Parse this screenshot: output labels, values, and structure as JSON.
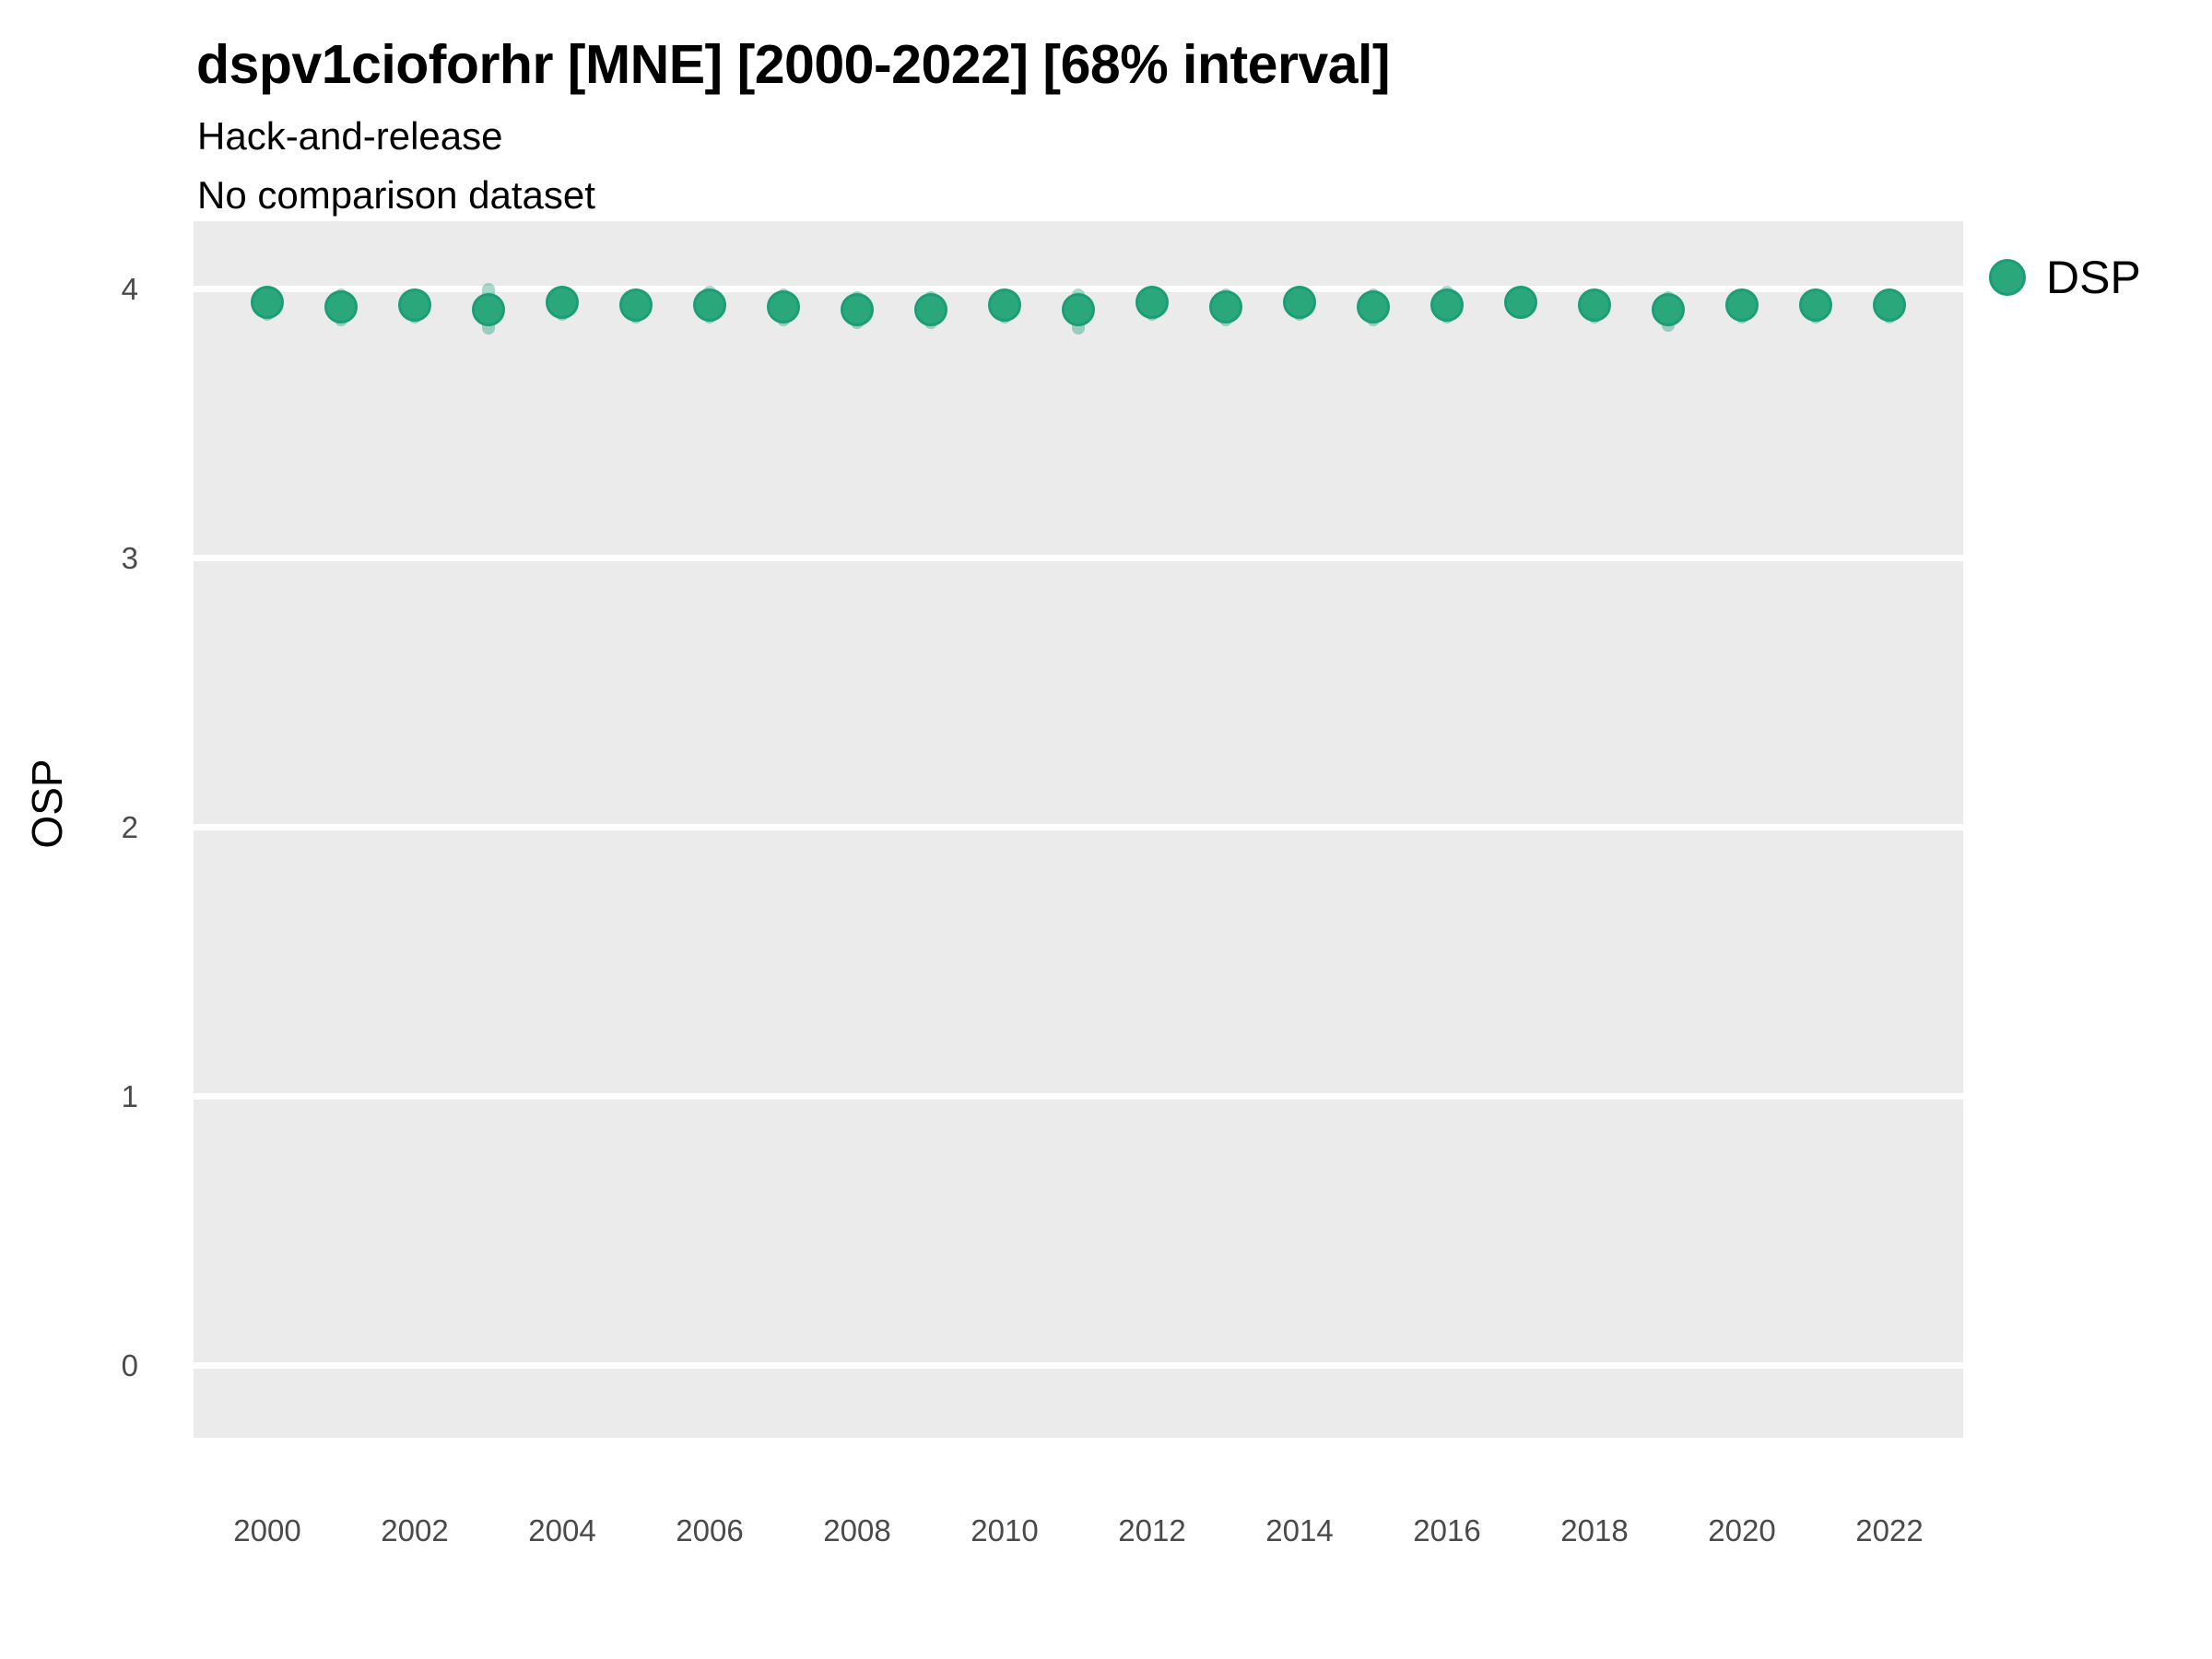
{
  "header": {
    "title": "dspv1cioforhr [MNE] [2000-2022] [68% interval]",
    "subtitle_line1": "Hack-and-release",
    "subtitle_line2": "No comparison dataset"
  },
  "colors": {
    "point_fill": "#2aa87c",
    "point_stroke": "#1b9e77",
    "interval_band": "rgba(27,158,119,0.38)",
    "panel_background": "#ebebeb",
    "gridline": "#ffffff",
    "tick_text": "#4a4a4a"
  },
  "chart_data": {
    "type": "scatter",
    "title": "dspv1cioforhr [MNE] [2000-2022] [68% interval]",
    "subtitle": [
      "Hack-and-release",
      "No comparison dataset"
    ],
    "xlabel": "",
    "ylabel": "OSP",
    "xlim": [
      1999,
      2023
    ],
    "ylim": [
      -0.27,
      4.25
    ],
    "x_ticks": [
      2000,
      2002,
      2004,
      2006,
      2008,
      2010,
      2012,
      2014,
      2016,
      2018,
      2020,
      2022
    ],
    "y_ticks": [
      0,
      1,
      2,
      3,
      4
    ],
    "grid": "major-horizontal-only",
    "legend_position": "right",
    "interval_label": "68% interval",
    "series": [
      {
        "name": "DSP",
        "color": "#1b9e77",
        "x": [
          2000,
          2001,
          2002,
          2003,
          2004,
          2005,
          2006,
          2007,
          2008,
          2009,
          2010,
          2011,
          2012,
          2013,
          2014,
          2015,
          2016,
          2017,
          2018,
          2019,
          2020,
          2021,
          2022
        ],
        "y": [
          3.95,
          3.93,
          3.94,
          3.92,
          3.95,
          3.94,
          3.94,
          3.93,
          3.92,
          3.92,
          3.94,
          3.92,
          3.95,
          3.93,
          3.95,
          3.93,
          3.94,
          3.95,
          3.94,
          3.92,
          3.94,
          3.94,
          3.94
        ],
        "y_lo": [
          3.88,
          3.86,
          3.87,
          3.83,
          3.88,
          3.87,
          3.87,
          3.86,
          3.85,
          3.85,
          3.87,
          3.83,
          3.88,
          3.86,
          3.88,
          3.86,
          3.87,
          3.89,
          3.87,
          3.84,
          3.87,
          3.87,
          3.87
        ],
        "y_hi": [
          4.01,
          4.0,
          4.0,
          4.02,
          4.01,
          4.0,
          4.01,
          4.0,
          3.99,
          3.99,
          4.0,
          4.0,
          4.01,
          4.0,
          4.01,
          4.0,
          4.01,
          4.01,
          4.0,
          3.99,
          4.0,
          4.0,
          4.0
        ]
      }
    ]
  }
}
